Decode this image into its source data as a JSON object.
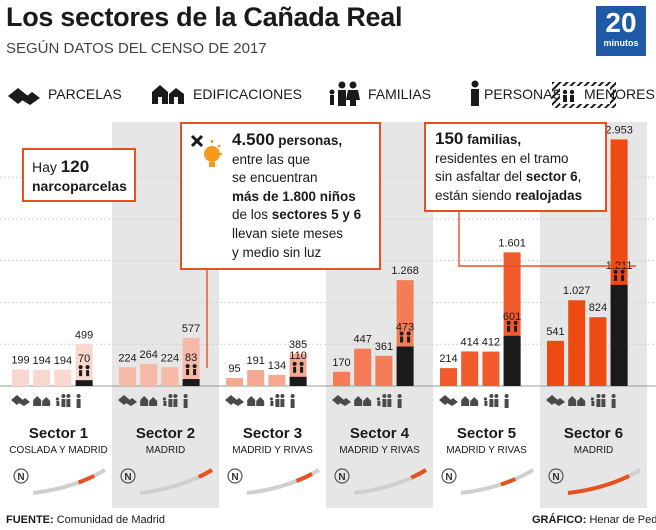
{
  "header": {
    "title": "Los sectores de la Cañada Real",
    "subtitle": "SEGÚN DATOS DEL CENSO DE 2017",
    "logo_number": "20",
    "logo_word": "minutos"
  },
  "legend": {
    "parcelas": "PARCELAS",
    "edificaciones": "EDIFICACIONES",
    "familias": "FAMILIAS",
    "personas": "PERSONAS",
    "menores": "MENORES"
  },
  "icons": {
    "parcelas": "parcel-icon",
    "edificaciones": "building-icon",
    "familias": "family-icon",
    "personas": "person-icon",
    "menores": "children-icon",
    "callout": "lightbulb-crossed-icon",
    "map_north": "north-compass-icon"
  },
  "colors": {
    "sector_1": "#f8d7cf",
    "sector_2": "#f7b9a7",
    "sector_3": "#f5a88f",
    "sector_4": "#f47c57",
    "sector_5": "#f15a2d",
    "sector_6": "#ee4b12",
    "accent": "#e8501e",
    "band": "#e6e6e6"
  },
  "chart_data": {
    "type": "bar",
    "series": [
      {
        "name": "PARCELAS",
        "values": [
          199,
          224,
          95,
          170,
          214,
          541
        ]
      },
      {
        "name": "EDIFICACIONES",
        "values": [
          194,
          264,
          191,
          447,
          414,
          1027
        ]
      },
      {
        "name": "FAMILIAS",
        "values": [
          194,
          224,
          134,
          361,
          412,
          824
        ]
      },
      {
        "name": "PERSONAS",
        "values": [
          499,
          577,
          385,
          1268,
          1601,
          2953
        ]
      },
      {
        "name": "MENORES",
        "values": [
          70,
          83,
          110,
          473,
          601,
          1211
        ]
      }
    ],
    "categories": [
      {
        "name": "Sector 1",
        "place": "COSLADA Y MADRID"
      },
      {
        "name": "Sector 2",
        "place": "MADRID"
      },
      {
        "name": "Sector 3",
        "place": "MADRID Y RIVAS"
      },
      {
        "name": "Sector 4",
        "place": "MADRID Y RIVAS"
      },
      {
        "name": "Sector 5",
        "place": "MADRID Y RIVAS"
      },
      {
        "name": "Sector 6",
        "place": "MADRID"
      }
    ],
    "value_labels": [
      [
        "199",
        "194",
        "194",
        "499",
        "70"
      ],
      [
        "224",
        "264",
        "224",
        "577",
        "83"
      ],
      [
        "95",
        "191",
        "134",
        "385",
        "110"
      ],
      [
        "170",
        "447",
        "361",
        "1.268",
        "473"
      ],
      [
        "214",
        "414",
        "412",
        "1.601",
        "601"
      ],
      [
        "541",
        "1.027",
        "824",
        "2.953",
        "1.211"
      ]
    ],
    "ylim": [
      0,
      3000
    ],
    "grid": true
  },
  "annotations": {
    "callout1": {
      "pre": "Hay ",
      "num": "120",
      "post": "narcoparcelas"
    },
    "callout2": {
      "num": "4.500",
      "unit": " personas,",
      "l1": "entre las que",
      "l2": "se encuentran",
      "l3": "más de 1.800 niños",
      "l4a": "de los ",
      "l4b": "sectores 5 y 6",
      "l5": "llevan siete meses",
      "l6": "y medio sin luz"
    },
    "callout3": {
      "num": "150",
      "unit": " familias,",
      "l1": "residentes en el tramo",
      "l2a": "sin asfaltar del ",
      "l2b": "sector 6",
      "l2c": ",",
      "l3a": "están siendo ",
      "l3b": "realojadas"
    }
  },
  "footer": {
    "source_label": "FUENTE:",
    "source_text": " Comunidad de Madrid",
    "credit_label": "GRÁFICO:",
    "credit_text": " Henar de Pedro"
  }
}
